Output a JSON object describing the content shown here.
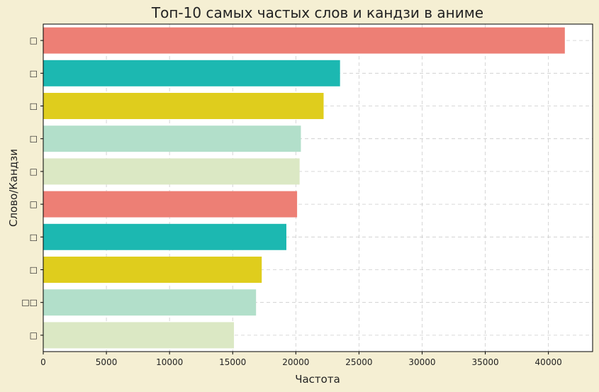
{
  "chart_data": {
    "type": "bar",
    "orientation": "horizontal",
    "title": "Топ-10 самых частых слов и кандзи в аниме",
    "xlabel": "Частота",
    "ylabel": "Слово/Кандзи",
    "xlim": [
      0,
      43500
    ],
    "xticks": [
      0,
      5000,
      10000,
      15000,
      20000,
      25000,
      30000,
      35000,
      40000
    ],
    "grid": true,
    "categories": [
      "□",
      "□",
      "□",
      "□",
      "□",
      "□",
      "□",
      "□",
      "□□",
      "□"
    ],
    "values": [
      41300,
      23500,
      22200,
      20400,
      20300,
      20100,
      19250,
      17300,
      16850,
      15100
    ],
    "colors": [
      "#ed7f75",
      "#1cb8b1",
      "#dfcd1d",
      "#b2dfca",
      "#dbe8c4",
      "#ed7f75",
      "#1cb8b1",
      "#dfcd1d",
      "#b2dfca",
      "#dbe8c4"
    ]
  }
}
